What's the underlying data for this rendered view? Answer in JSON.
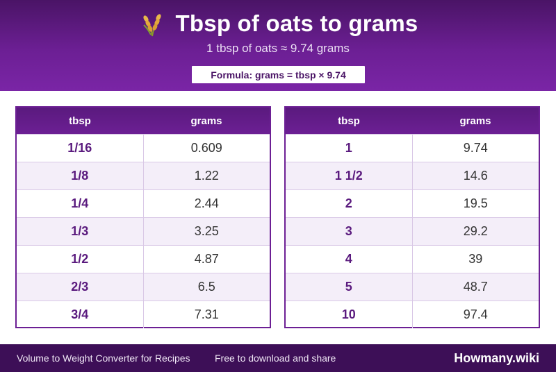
{
  "header": {
    "title": "Tbsp of oats to grams",
    "subtitle": "1 tbsp of oats ≈ 9.74 grams",
    "formula": "Formula: grams = tbsp × 9.74",
    "icon": "oat-stalk-icon"
  },
  "tables": {
    "left": {
      "col_tbsp": "tbsp",
      "col_grams": "grams",
      "rows": [
        {
          "tbsp": "1/16",
          "grams": "0.609"
        },
        {
          "tbsp": "1/8",
          "grams": "1.22"
        },
        {
          "tbsp": "1/4",
          "grams": "2.44"
        },
        {
          "tbsp": "1/3",
          "grams": "3.25"
        },
        {
          "tbsp": "1/2",
          "grams": "4.87"
        },
        {
          "tbsp": "2/3",
          "grams": "6.5"
        },
        {
          "tbsp": "3/4",
          "grams": "7.31"
        }
      ]
    },
    "right": {
      "col_tbsp": "tbsp",
      "col_grams": "grams",
      "rows": [
        {
          "tbsp": "1",
          "grams": "9.74"
        },
        {
          "tbsp": "1 1/2",
          "grams": "14.6"
        },
        {
          "tbsp": "2",
          "grams": "19.5"
        },
        {
          "tbsp": "3",
          "grams": "29.2"
        },
        {
          "tbsp": "4",
          "grams": "39"
        },
        {
          "tbsp": "5",
          "grams": "48.7"
        },
        {
          "tbsp": "10",
          "grams": "97.4"
        }
      ]
    }
  },
  "footer": {
    "left": "Volume to Weight Converter for Recipes",
    "middle": "Free to download and share",
    "brand": "Howmany.wiki"
  },
  "colors": {
    "header_dark": "#4a1466",
    "header_accent": "#7a25a6",
    "footer_bg": "#3d0f57",
    "row_alt": "#f4eef9"
  }
}
